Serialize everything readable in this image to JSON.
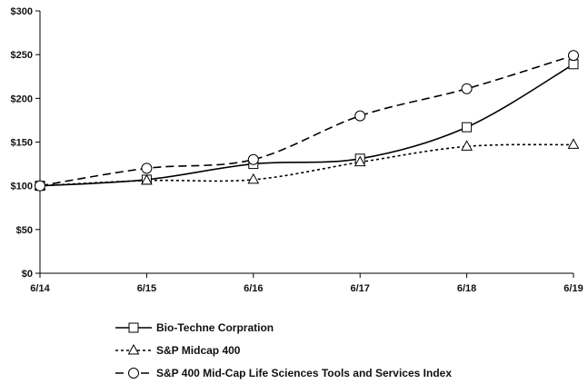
{
  "chart_data": {
    "type": "line",
    "title": "",
    "xlabel": "",
    "ylabel": "",
    "categories": [
      "6/14",
      "6/15",
      "6/16",
      "6/17",
      "6/18",
      "6/19"
    ],
    "ylim": [
      0,
      300
    ],
    "yticks": [
      0,
      50,
      100,
      150,
      200,
      250,
      300
    ],
    "ytick_labels": [
      "$0",
      "$50",
      "$100",
      "$150",
      "$200",
      "$250",
      "$300"
    ],
    "grid": false,
    "legend_position": "bottom",
    "series": [
      {
        "name": "Bio-Techne Corpration",
        "values": [
          100,
          107,
          125,
          131,
          167,
          239
        ],
        "marker": "square",
        "line_style": "solid",
        "color": "#000000"
      },
      {
        "name": "S&P Midcap 400",
        "values": [
          100,
          106,
          107,
          127,
          145,
          147
        ],
        "marker": "triangle",
        "line_style": "dotted",
        "color": "#000000"
      },
      {
        "name": "S&P 400 Mid-Cap Life Sciences Tools and Services Index",
        "values": [
          100,
          120,
          130,
          180,
          211,
          249
        ],
        "marker": "circle",
        "line_style": "dashed",
        "color": "#000000"
      }
    ]
  }
}
